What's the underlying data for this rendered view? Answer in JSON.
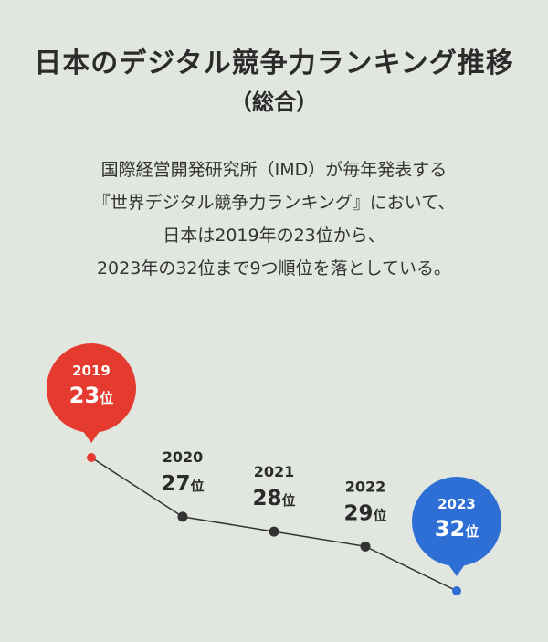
{
  "title": "日本のデジタル競争力ランキング推移",
  "subtitle": "（総合）",
  "description": [
    "国際経営開発研究所（IMD）が毎年発表する",
    "『世界デジタル競争力ランキング』において、",
    "日本は2019年の23位から、",
    "2023年の32位まで9つ順位を落としている。"
  ],
  "colors": {
    "background": "#e1e7df",
    "highlight_start": "#e53a2f",
    "highlight_end": "#2e6fd6",
    "line": "#333333"
  },
  "chart_data": {
    "type": "line",
    "x": [
      "2019",
      "2020",
      "2021",
      "2022",
      "2023"
    ],
    "values": [
      23,
      27,
      28,
      29,
      32
    ],
    "rank_suffix": "位",
    "invert_y": true,
    "highlight": [
      0,
      4
    ]
  }
}
